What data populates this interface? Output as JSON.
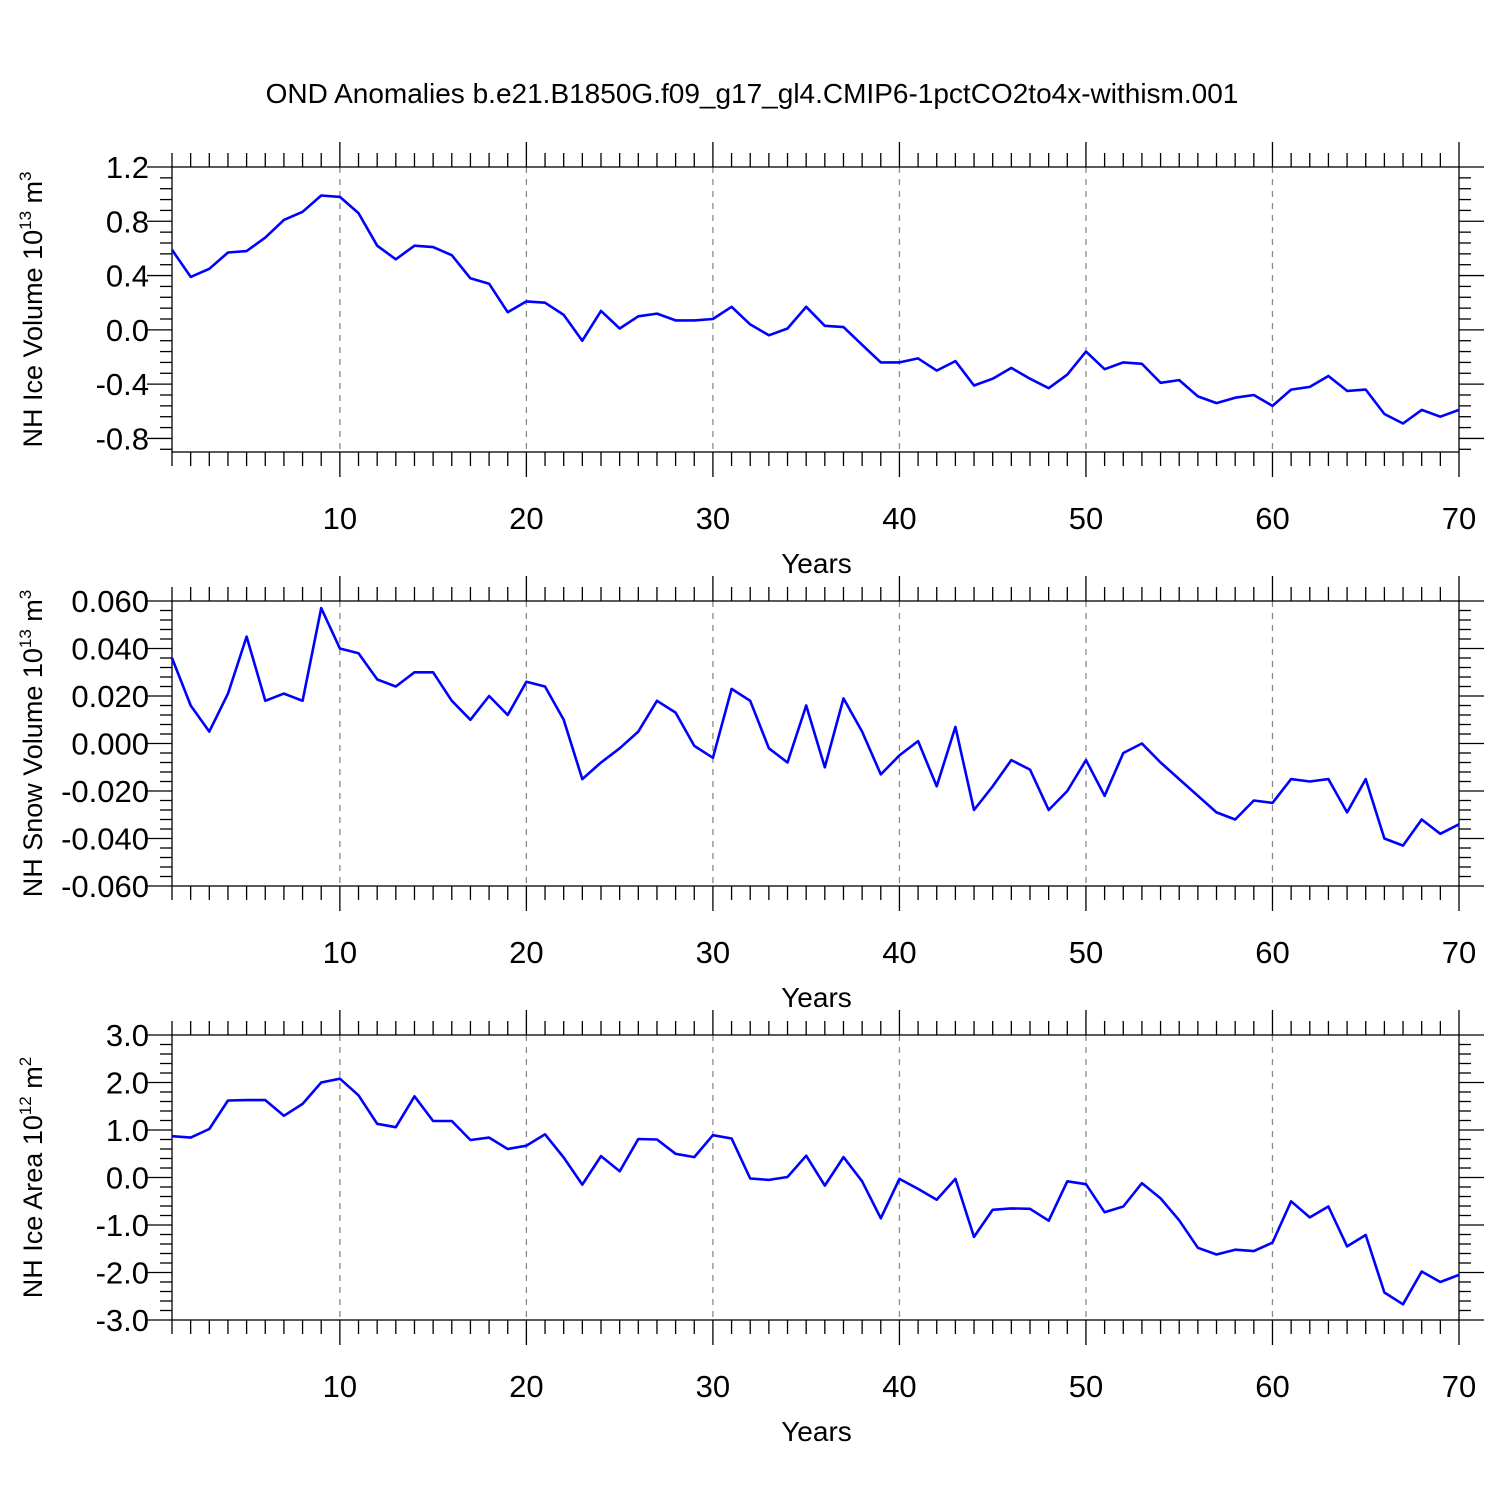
{
  "title": "OND Anomalies b.e21.B1850G.f09_g17_gl4.CMIP6-1pctCO2to4x-withism.001",
  "line_color": "#0000ff",
  "chart_data": [
    {
      "type": "line",
      "title": "OND Anomalies b.e21.B1850G.f09_g17_gl4.CMIP6-1pctCO2to4x-withism.001",
      "xlabel": "Years",
      "ylabel_text": "NH Ice Volume 10",
      "ylabel_sup": "13",
      "ylabel_unit": " m",
      "ylabel_unit_sup": "3",
      "xlim": [
        1,
        70
      ],
      "ylim": [
        -0.9,
        1.2
      ],
      "xticks": [
        10,
        20,
        30,
        40,
        50,
        60,
        70
      ],
      "yticks": [
        "-0.8",
        "-0.4",
        "0.0",
        "0.4",
        "0.8",
        "1.2"
      ],
      "grid_x": true,
      "series": [
        {
          "x": [
            1,
            2,
            3,
            4,
            5,
            6,
            7,
            8,
            9,
            10,
            11,
            12,
            13,
            14,
            15,
            16,
            17,
            18,
            19,
            20,
            21,
            22,
            23,
            24,
            25,
            26,
            27,
            28,
            29,
            30,
            31,
            32,
            33,
            34,
            35,
            36,
            37,
            38,
            39,
            40,
            41,
            42,
            43,
            44,
            45,
            46,
            47,
            48,
            49,
            50,
            51,
            52,
            53,
            54,
            55,
            56,
            57,
            58,
            59,
            60,
            61,
            62,
            63,
            64,
            65,
            66,
            67,
            68,
            69,
            70
          ],
          "values": [
            0.59,
            0.39,
            0.45,
            0.57,
            0.58,
            0.68,
            0.81,
            0.87,
            0.99,
            0.98,
            0.86,
            0.62,
            0.52,
            0.62,
            0.61,
            0.55,
            0.38,
            0.34,
            0.13,
            0.21,
            0.2,
            0.11,
            -0.08,
            0.14,
            0.01,
            0.1,
            0.12,
            0.07,
            0.07,
            0.08,
            0.17,
            0.04,
            -0.04,
            0.01,
            0.17,
            0.03,
            0.02,
            -0.11,
            -0.24,
            -0.24,
            -0.21,
            -0.3,
            -0.23,
            -0.41,
            -0.36,
            -0.28,
            -0.36,
            -0.43,
            -0.33,
            -0.16,
            -0.29,
            -0.24,
            -0.25,
            -0.39,
            -0.37,
            -0.49,
            -0.54,
            -0.5,
            -0.48,
            -0.56,
            -0.44,
            -0.42,
            -0.34,
            -0.45,
            -0.44,
            -0.62,
            -0.69,
            -0.59,
            -0.64,
            -0.59
          ]
        }
      ]
    },
    {
      "type": "line",
      "xlabel": "Years",
      "ylabel_text": "NH Snow Volume 10",
      "ylabel_sup": "13",
      "ylabel_unit": " m",
      "ylabel_unit_sup": "3",
      "xlim": [
        1,
        70
      ],
      "ylim": [
        -0.06,
        0.06
      ],
      "xticks": [
        10,
        20,
        30,
        40,
        50,
        60,
        70
      ],
      "yticks": [
        "-0.060",
        "-0.040",
        "-0.020",
        "0.000",
        "0.020",
        "0.040",
        "0.060"
      ],
      "grid_x": true,
      "series": [
        {
          "x": [
            1,
            2,
            3,
            4,
            5,
            6,
            7,
            8,
            9,
            10,
            11,
            12,
            13,
            14,
            15,
            16,
            17,
            18,
            19,
            20,
            21,
            22,
            23,
            24,
            25,
            26,
            27,
            28,
            29,
            30,
            31,
            32,
            33,
            34,
            35,
            36,
            37,
            38,
            39,
            40,
            41,
            42,
            43,
            44,
            45,
            46,
            47,
            48,
            49,
            50,
            51,
            52,
            53,
            54,
            55,
            56,
            57,
            58,
            59,
            60,
            61,
            62,
            63,
            64,
            65,
            66,
            67,
            68,
            69,
            70
          ],
          "values": [
            0.036,
            0.016,
            0.005,
            0.021,
            0.045,
            0.018,
            0.021,
            0.018,
            0.057,
            0.04,
            0.038,
            0.027,
            0.024,
            0.03,
            0.03,
            0.018,
            0.01,
            0.02,
            0.012,
            0.026,
            0.024,
            0.01,
            -0.015,
            -0.008,
            -0.002,
            0.005,
            0.018,
            0.013,
            -0.001,
            -0.006,
            0.023,
            0.018,
            -0.002,
            -0.008,
            0.016,
            -0.01,
            0.019,
            0.005,
            -0.013,
            -0.005,
            0.001,
            -0.018,
            0.007,
            -0.028,
            -0.018,
            -0.007,
            -0.011,
            -0.028,
            -0.02,
            -0.007,
            -0.022,
            -0.004,
            0.0,
            -0.008,
            -0.015,
            -0.022,
            -0.029,
            -0.032,
            -0.024,
            -0.025,
            -0.015,
            -0.016,
            -0.015,
            -0.029,
            -0.015,
            -0.04,
            -0.043,
            -0.032,
            -0.038,
            -0.034
          ]
        }
      ]
    },
    {
      "type": "line",
      "xlabel": "Years",
      "ylabel_text": "NH Ice Area 10",
      "ylabel_sup": "12",
      "ylabel_unit": " m",
      "ylabel_unit_sup": "2",
      "xlim": [
        1,
        70
      ],
      "ylim": [
        -3.0,
        3.0
      ],
      "xticks": [
        10,
        20,
        30,
        40,
        50,
        60,
        70
      ],
      "yticks": [
        "-3.0",
        "-2.0",
        "-1.0",
        "0.0",
        "1.0",
        "2.0",
        "3.0"
      ],
      "grid_x": true,
      "series": [
        {
          "x": [
            1,
            2,
            3,
            4,
            5,
            6,
            7,
            8,
            9,
            10,
            11,
            12,
            13,
            14,
            15,
            16,
            17,
            18,
            19,
            20,
            21,
            22,
            23,
            24,
            25,
            26,
            27,
            28,
            29,
            30,
            31,
            32,
            33,
            34,
            35,
            36,
            37,
            38,
            39,
            40,
            41,
            42,
            43,
            44,
            45,
            46,
            47,
            48,
            49,
            50,
            51,
            52,
            53,
            54,
            55,
            56,
            57,
            58,
            59,
            60,
            61,
            62,
            63,
            64,
            65,
            66,
            67,
            68,
            69,
            70
          ],
          "values": [
            0.87,
            0.84,
            1.02,
            1.62,
            1.63,
            1.63,
            1.3,
            1.55,
            2.0,
            2.08,
            1.73,
            1.13,
            1.06,
            1.71,
            1.19,
            1.19,
            0.79,
            0.84,
            0.6,
            0.67,
            0.91,
            0.42,
            -0.15,
            0.45,
            0.13,
            0.81,
            0.8,
            0.5,
            0.43,
            0.89,
            0.82,
            -0.02,
            -0.05,
            0.01,
            0.46,
            -0.17,
            0.43,
            -0.08,
            -0.86,
            -0.03,
            -0.24,
            -0.47,
            -0.03,
            -1.25,
            -0.68,
            -0.65,
            -0.66,
            -0.91,
            -0.08,
            -0.14,
            -0.73,
            -0.61,
            -0.12,
            -0.44,
            -0.9,
            -1.48,
            -1.62,
            -1.52,
            -1.55,
            -1.37,
            -0.5,
            -0.84,
            -0.61,
            -1.45,
            -1.21,
            -2.42,
            -2.67,
            -1.98,
            -2.2,
            -2.05
          ]
        }
      ]
    }
  ]
}
